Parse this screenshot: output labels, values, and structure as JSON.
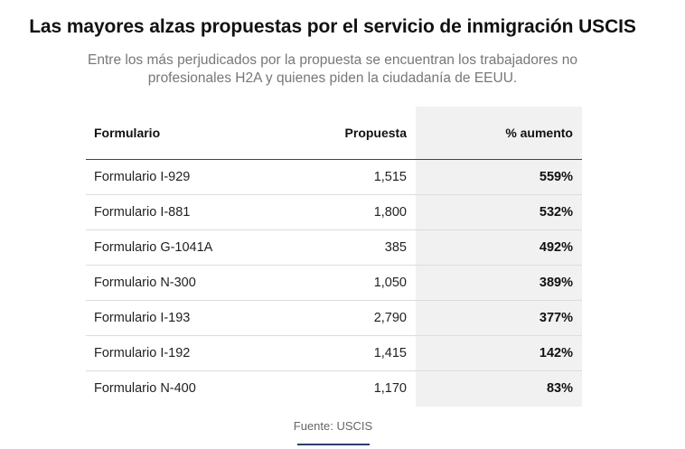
{
  "title": "Las mayores alzas propuestas por el servicio de inmigración USCIS",
  "subtitle": "Entre los más perjudicados por la propuesta se encuentran los trabajadores no profesionales H2A y quienes piden la ciudadanía de EEUU.",
  "source": "Fuente: USCIS",
  "colors": {
    "highlight_column": "#f1f1f1",
    "source_underline": "#2c3e6b"
  },
  "chart_data": {
    "type": "table",
    "columns": [
      "Formulario",
      "Propuesta",
      "% aumento"
    ],
    "rows": [
      [
        "Formulario I-929",
        "1,515",
        "559%"
      ],
      [
        "Formulario I-881",
        "1,800",
        "532%"
      ],
      [
        "Formulario G-1041A",
        "385",
        "492%"
      ],
      [
        "Formulario N-300",
        "1,050",
        "389%"
      ],
      [
        "Formulario I-193",
        "2,790",
        "377%"
      ],
      [
        "Formulario I-192",
        "1,415",
        "142%"
      ],
      [
        "Formulario N-400",
        "1,170",
        "83%"
      ]
    ]
  }
}
